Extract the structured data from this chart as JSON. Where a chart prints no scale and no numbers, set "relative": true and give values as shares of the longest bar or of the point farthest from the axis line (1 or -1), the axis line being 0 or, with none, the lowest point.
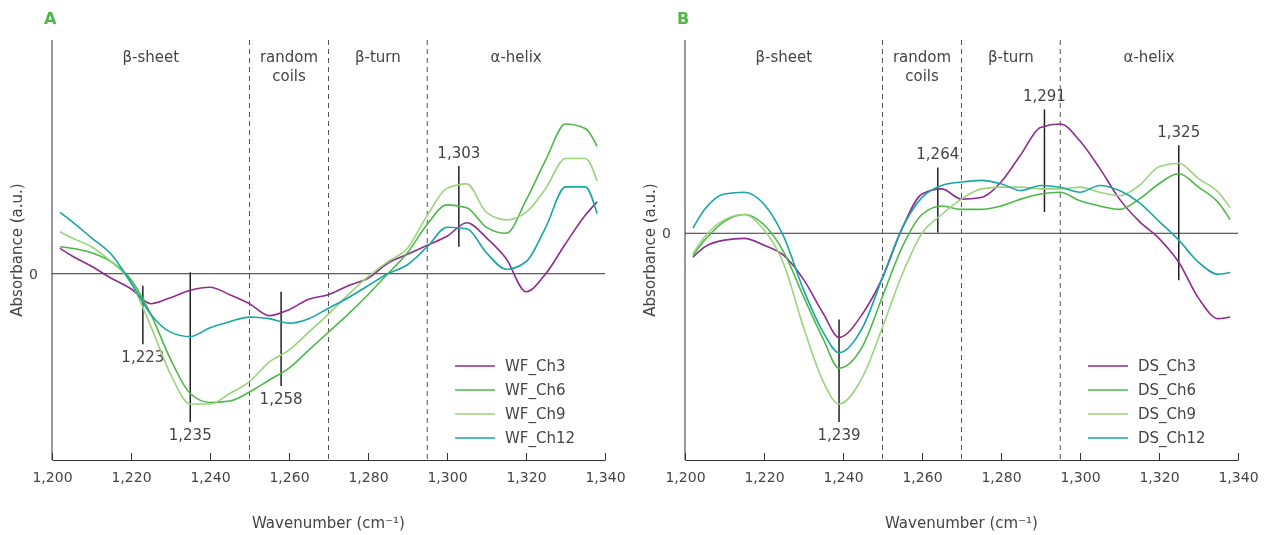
{
  "chart_data": [
    {
      "type": "line",
      "title": "A",
      "xlabel": "Wavenumber (cm⁻¹)",
      "ylabel": "Absorbance (a.u.)",
      "relative": true,
      "x": [
        1202,
        1205,
        1210,
        1215,
        1220,
        1225,
        1230,
        1235,
        1240,
        1245,
        1250,
        1255,
        1260,
        1265,
        1270,
        1275,
        1280,
        1285,
        1290,
        1295,
        1300,
        1305,
        1310,
        1315,
        1320,
        1325,
        1330,
        1335,
        1338
      ],
      "xlim": [
        1200,
        1340
      ],
      "xticks": [
        {
          "value": 1200,
          "label": "1,200"
        },
        {
          "value": 1220,
          "label": "1,220"
        },
        {
          "value": 1240,
          "label": "1,240"
        },
        {
          "value": 1260,
          "label": "1,260"
        },
        {
          "value": 1280,
          "label": "1,280"
        },
        {
          "value": 1300,
          "label": "1,300"
        },
        {
          "value": 1320,
          "label": "1,320"
        },
        {
          "value": 1340,
          "label": "1,340"
        }
      ],
      "series": [
        {
          "name": "WF_Ch3",
          "color": "#8e2c8e",
          "values": [
            0.17,
            0.12,
            0.05,
            -0.03,
            -0.1,
            -0.2,
            -0.16,
            -0.11,
            -0.09,
            -0.14,
            -0.2,
            -0.28,
            -0.24,
            -0.17,
            -0.14,
            -0.08,
            -0.03,
            0.07,
            0.13,
            0.19,
            0.25,
            0.34,
            0.24,
            0.1,
            -0.12,
            0.0,
            0.2,
            0.39,
            0.48
          ]
        },
        {
          "name": "WF_Ch6",
          "color": "#4db848",
          "values": [
            0.18,
            0.17,
            0.14,
            0.08,
            -0.04,
            -0.27,
            -0.57,
            -0.8,
            -0.86,
            -0.85,
            -0.79,
            -0.71,
            -0.63,
            -0.51,
            -0.39,
            -0.27,
            -0.14,
            0.0,
            0.14,
            0.33,
            0.46,
            0.44,
            0.31,
            0.27,
            0.49,
            0.76,
            1.0,
            0.97,
            0.85
          ]
        },
        {
          "name": "WF_Ch9",
          "color": "#99d47c",
          "values": [
            0.28,
            0.24,
            0.18,
            0.08,
            -0.06,
            -0.35,
            -0.67,
            -0.87,
            -0.87,
            -0.8,
            -0.72,
            -0.59,
            -0.51,
            -0.39,
            -0.27,
            -0.14,
            -0.02,
            0.08,
            0.17,
            0.39,
            0.57,
            0.6,
            0.41,
            0.36,
            0.41,
            0.57,
            0.77,
            0.77,
            0.62
          ]
        },
        {
          "name": "WF_Ch12",
          "color": "#1aa5a5",
          "values": [
            0.41,
            0.35,
            0.24,
            0.13,
            -0.06,
            -0.27,
            -0.39,
            -0.42,
            -0.36,
            -0.32,
            -0.29,
            -0.3,
            -0.33,
            -0.3,
            -0.23,
            -0.16,
            -0.08,
            0.0,
            0.06,
            0.18,
            0.31,
            0.3,
            0.14,
            0.03,
            0.08,
            0.31,
            0.58,
            0.58,
            0.4
          ]
        }
      ],
      "ref_lines": [
        {
          "axis": "y",
          "value": 0,
          "label": "0"
        },
        {
          "axis": "x",
          "value": 1250,
          "line_style": "dashed"
        },
        {
          "axis": "x",
          "value": 1270,
          "line_style": "dashed"
        },
        {
          "axis": "x",
          "value": 1295,
          "line_style": "dashed"
        },
        {
          "axis": "x",
          "value": 1223,
          "label": "1,223"
        },
        {
          "axis": "x",
          "value": 1235,
          "label": "1,235"
        },
        {
          "axis": "x",
          "value": 1258,
          "label": "1,258"
        },
        {
          "axis": "x",
          "value": 1303,
          "label": "1,303"
        }
      ],
      "annotations": [
        "β-sheet",
        "random coils",
        "β-turn",
        "α-helix"
      ],
      "legend": "bottom right"
    },
    {
      "type": "line",
      "title": "B",
      "xlabel": "Wavenumber (cm⁻¹)",
      "ylabel": "Absorbance (a.u.)",
      "relative": true,
      "x": [
        1202,
        1205,
        1210,
        1215,
        1220,
        1225,
        1230,
        1235,
        1239,
        1245,
        1250,
        1255,
        1260,
        1265,
        1270,
        1275,
        1280,
        1285,
        1290,
        1295,
        1300,
        1305,
        1310,
        1315,
        1320,
        1325,
        1330,
        1335,
        1338
      ],
      "xlim": [
        1200,
        1340
      ],
      "xticks": [
        {
          "value": 1200,
          "label": "1,200"
        },
        {
          "value": 1220,
          "label": "1,220"
        },
        {
          "value": 1240,
          "label": "1,240"
        },
        {
          "value": 1260,
          "label": "1,260"
        },
        {
          "value": 1280,
          "label": "1,280"
        },
        {
          "value": 1300,
          "label": "1,300"
        },
        {
          "value": 1320,
          "label": "1,320"
        },
        {
          "value": 1340,
          "label": "1,340"
        }
      ],
      "series": [
        {
          "name": "DS_Ch3",
          "color": "#8e2c8e",
          "values": [
            -0.14,
            -0.08,
            -0.04,
            -0.03,
            -0.07,
            -0.13,
            -0.27,
            -0.47,
            -0.61,
            -0.47,
            -0.26,
            0.03,
            0.23,
            0.26,
            0.2,
            0.21,
            0.3,
            0.46,
            0.62,
            0.64,
            0.54,
            0.38,
            0.2,
            0.07,
            -0.03,
            -0.17,
            -0.38,
            -0.5,
            -0.49
          ]
        },
        {
          "name": "DS_Ch6",
          "color": "#4db848",
          "values": [
            -0.13,
            -0.04,
            0.07,
            0.11,
            0.05,
            -0.11,
            -0.37,
            -0.62,
            -0.79,
            -0.66,
            -0.37,
            -0.08,
            0.11,
            0.16,
            0.14,
            0.14,
            0.16,
            0.2,
            0.23,
            0.24,
            0.19,
            0.16,
            0.14,
            0.2,
            0.29,
            0.35,
            0.27,
            0.18,
            0.08
          ]
        },
        {
          "name": "DS_Ch9",
          "color": "#99d47c",
          "values": [
            -0.12,
            -0.02,
            0.08,
            0.11,
            0.02,
            -0.18,
            -0.55,
            -0.87,
            -1.0,
            -0.84,
            -0.55,
            -0.24,
            0.0,
            0.11,
            0.2,
            0.26,
            0.27,
            0.27,
            0.26,
            0.26,
            0.27,
            0.24,
            0.22,
            0.28,
            0.39,
            0.41,
            0.32,
            0.24,
            0.15
          ]
        },
        {
          "name": "DS_Ch12",
          "color": "#1aa5a5",
          "values": [
            0.03,
            0.14,
            0.23,
            0.24,
            0.17,
            -0.02,
            -0.33,
            -0.58,
            -0.7,
            -0.55,
            -0.26,
            0.03,
            0.21,
            0.28,
            0.3,
            0.31,
            0.29,
            0.25,
            0.28,
            0.27,
            0.24,
            0.28,
            0.25,
            0.18,
            0.07,
            -0.04,
            -0.17,
            -0.24,
            -0.23
          ]
        }
      ],
      "ref_lines": [
        {
          "axis": "y",
          "value": 0,
          "label": "0"
        },
        {
          "axis": "x",
          "value": 1250,
          "line_style": "dashed"
        },
        {
          "axis": "x",
          "value": 1270,
          "line_style": "dashed"
        },
        {
          "axis": "x",
          "value": 1295,
          "line_style": "dashed"
        },
        {
          "axis": "x",
          "value": 1239,
          "label": "1,239"
        },
        {
          "axis": "x",
          "value": 1264,
          "label": "1,264"
        },
        {
          "axis": "x",
          "value": 1291,
          "label": "1,291"
        },
        {
          "axis": "x",
          "value": 1325,
          "label": "1,325"
        }
      ],
      "annotations": [
        "β-sheet",
        "random coils",
        "β-turn",
        "α-helix"
      ],
      "legend": "bottom right"
    }
  ]
}
